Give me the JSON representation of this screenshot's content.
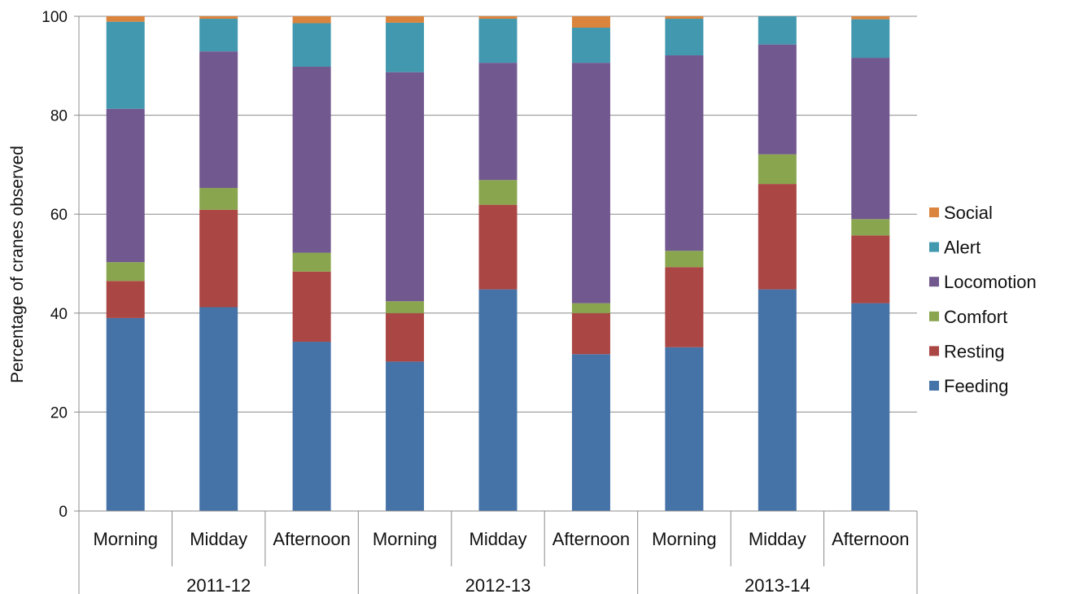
{
  "chart_data": {
    "type": "bar",
    "stacked": true,
    "ylabel": "Percentage of cranes observed",
    "xlabel": "",
    "ylim": [
      0,
      100
    ],
    "yticks": [
      0,
      20,
      40,
      60,
      80,
      100
    ],
    "grid": true,
    "legend_position": "right",
    "groups": [
      "2011-12",
      "2012-13",
      "2013-14"
    ],
    "categories": [
      "Morning",
      "Midday",
      "Afternoon",
      "Morning",
      "Midday",
      "Afternoon",
      "Morning",
      "Midday",
      "Afternoon"
    ],
    "series": [
      {
        "name": "Feeding",
        "color": "#4572a7",
        "values": [
          39,
          41.2,
          34.2,
          30.2,
          44.8,
          31.7,
          33.1,
          44.8,
          42
        ]
      },
      {
        "name": "Resting",
        "color": "#aa4643",
        "values": [
          7.5,
          19.7,
          14.2,
          9.8,
          17.1,
          8.3,
          16.2,
          21.3,
          13.7
        ]
      },
      {
        "name": "Comfort",
        "color": "#89a54e",
        "values": [
          3.8,
          4.4,
          3.8,
          2.4,
          5,
          2,
          3.3,
          6,
          3.3
        ]
      },
      {
        "name": "Locomotion",
        "color": "#71588f",
        "values": [
          31,
          27.6,
          37.6,
          46.3,
          23.7,
          48.6,
          39.5,
          22.2,
          32.6
        ]
      },
      {
        "name": "Alert",
        "color": "#4198af",
        "values": [
          17.6,
          6.6,
          8.8,
          10,
          8.9,
          7.1,
          7.4,
          5.7,
          7.8
        ]
      },
      {
        "name": "Social",
        "color": "#db843d",
        "values": [
          1.1,
          0.5,
          1.4,
          1.3,
          0.5,
          2.3,
          0.5,
          0,
          0.6
        ]
      }
    ]
  }
}
